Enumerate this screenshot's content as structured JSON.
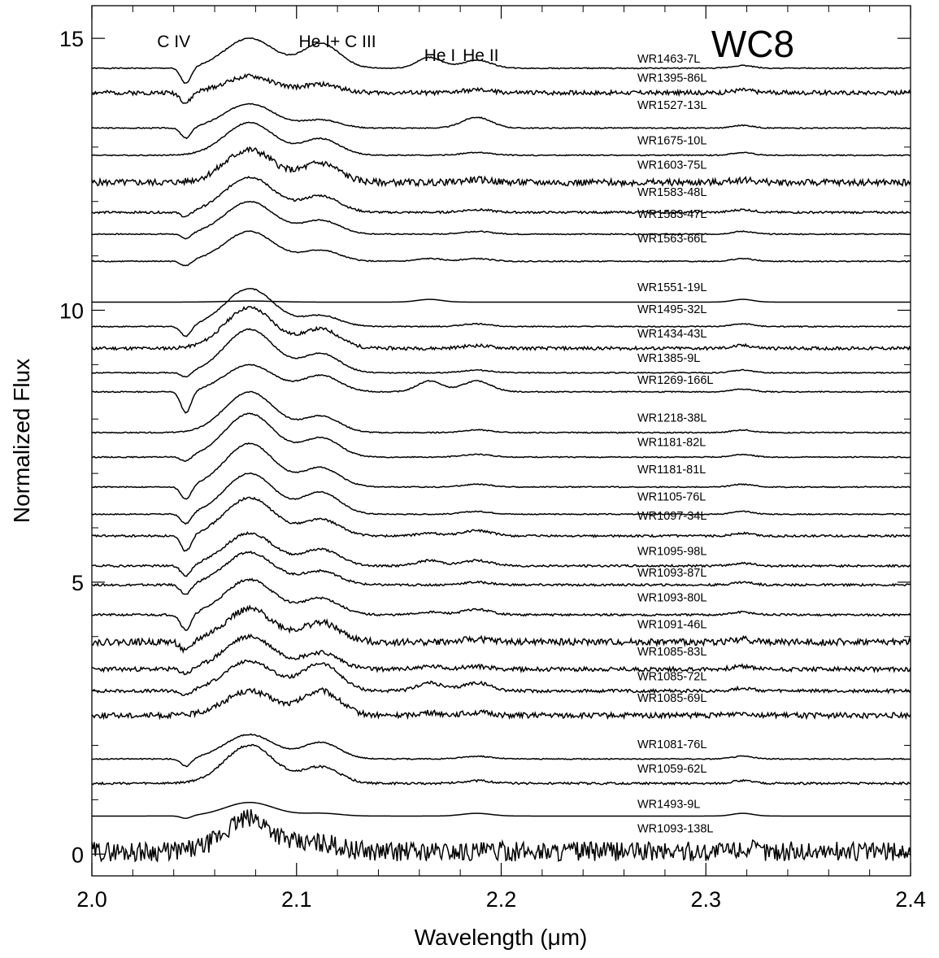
{
  "chart_data": {
    "type": "line",
    "title": "WC8",
    "xlabel": "Wavelength (μm)",
    "ylabel": "Normalized Flux",
    "xlim": [
      2.0,
      2.4
    ],
    "ylim": [
      -0.4,
      15.6
    ],
    "x_ticks": [
      2.0,
      2.1,
      2.2,
      2.3,
      2.4
    ],
    "x_tick_labels": [
      "2.0",
      "2.1",
      "2.2",
      "2.3",
      "2.4"
    ],
    "y_ticks": [
      0,
      5,
      10,
      15
    ],
    "y_tick_labels": [
      "0",
      "5",
      "10",
      "15"
    ],
    "grid": false,
    "legend": "none",
    "line_annotations": [
      {
        "text": "C IV",
        "x": 2.04
      },
      {
        "text": "He I+ C III",
        "x": 2.12
      },
      {
        "text": "He I",
        "x": 2.17
      },
      {
        "text": "He II",
        "x": 2.19
      }
    ],
    "series": [
      {
        "name": "WR1463-7L",
        "offset": 14.45,
        "e1": 0.55,
        "e2": 0.45,
        "e3": 0.2,
        "e4": 0.15,
        "civ": 0.3,
        "noise": 0.01,
        "label_y": 14.55
      },
      {
        "name": "WR1395-86L",
        "offset": 14.0,
        "e1": 0.3,
        "e2": 0.15,
        "e3": 0.0,
        "e4": 0.05,
        "civ": 0.2,
        "noise": 0.04,
        "label_y": 14.2
      },
      {
        "name": "WR1527-13L",
        "offset": 13.35,
        "e1": 0.45,
        "e2": 0.15,
        "e3": 0.0,
        "e4": 0.2,
        "civ": 0.2,
        "noise": 0.01,
        "label_y": 13.7
      },
      {
        "name": "WR1675-10L",
        "offset": 12.85,
        "e1": 0.6,
        "e2": 0.3,
        "e3": 0.0,
        "e4": 0.05,
        "civ": 0.0,
        "noise": 0.01,
        "label_y": 13.05
      },
      {
        "name": "WR1603-75L",
        "offset": 12.35,
        "e1": 0.6,
        "e2": 0.35,
        "e3": 0.0,
        "e4": 0.05,
        "civ": 0.0,
        "noise": 0.06,
        "label_y": 12.6
      },
      {
        "name": "WR1583-48L",
        "offset": 11.8,
        "e1": 0.65,
        "e2": 0.3,
        "e3": 0.0,
        "e4": 0.05,
        "civ": 0.1,
        "noise": 0.02,
        "label_y": 12.1
      },
      {
        "name": "WR1583-47L",
        "offset": 11.4,
        "e1": 0.6,
        "e2": 0.25,
        "e3": 0.0,
        "e4": 0.05,
        "civ": 0.1,
        "noise": 0.01,
        "label_y": 11.7
      },
      {
        "name": "WR1563-66L",
        "offset": 10.9,
        "e1": 0.55,
        "e2": 0.2,
        "e3": 0.05,
        "e4": 0.05,
        "civ": 0.1,
        "noise": 0.01,
        "label_y": 11.25
      },
      {
        "name": "WR1551-19L",
        "offset": 10.15,
        "e1": 0.02,
        "e2": 0.0,
        "e3": 0.05,
        "e4": 0.0,
        "civ": 0.0,
        "noise": 0.0,
        "label_y": 10.35
      },
      {
        "name": "WR1495-32L",
        "offset": 9.7,
        "e1": 0.7,
        "e2": 0.2,
        "e3": 0.0,
        "e4": 0.05,
        "civ": 0.2,
        "noise": 0.01,
        "label_y": 9.95
      },
      {
        "name": "WR1434-43L",
        "offset": 9.3,
        "e1": 0.75,
        "e2": 0.35,
        "e3": 0.0,
        "e4": 0.05,
        "civ": 0.0,
        "noise": 0.03,
        "label_y": 9.5
      },
      {
        "name": "WR1385-9L",
        "offset": 8.85,
        "e1": 0.8,
        "e2": 0.35,
        "e3": 0.0,
        "e4": 0.05,
        "civ": 0.1,
        "noise": 0.01,
        "label_y": 9.05
      },
      {
        "name": "WR1269-166L",
        "offset": 8.5,
        "e1": 0.5,
        "e2": 0.3,
        "e3": 0.2,
        "e4": 0.2,
        "civ": 0.4,
        "noise": 0.01,
        "label_y": 8.65
      },
      {
        "name": "WR1218-38L",
        "offset": 7.75,
        "e1": 0.75,
        "e2": 0.3,
        "e3": 0.0,
        "e4": 0.05,
        "civ": 0.0,
        "noise": 0.01,
        "label_y": 7.95
      },
      {
        "name": "WR1181-82L",
        "offset": 7.3,
        "e1": 0.8,
        "e2": 0.35,
        "e3": 0.0,
        "e4": 0.05,
        "civ": 0.1,
        "noise": 0.01,
        "label_y": 7.5
      },
      {
        "name": "WR1181-81L",
        "offset": 6.75,
        "e1": 0.8,
        "e2": 0.35,
        "e3": 0.0,
        "e4": 0.05,
        "civ": 0.25,
        "noise": 0.01,
        "label_y": 7.0
      },
      {
        "name": "WR1105-76L",
        "offset": 6.25,
        "e1": 0.75,
        "e2": 0.4,
        "e3": 0.0,
        "e4": 0.05,
        "civ": 0.2,
        "noise": 0.01,
        "label_y": 6.5
      },
      {
        "name": "WR1097-34L",
        "offset": 5.85,
        "e1": 0.7,
        "e2": 0.3,
        "e3": 0.05,
        "e4": 0.1,
        "civ": 0.3,
        "noise": 0.02,
        "label_y": 6.15
      },
      {
        "name": "WR1095-98L",
        "offset": 5.3,
        "e1": 0.6,
        "e2": 0.3,
        "e3": 0.1,
        "e4": 0.1,
        "civ": 0.2,
        "noise": 0.02,
        "label_y": 5.5
      },
      {
        "name": "WR1093-87L",
        "offset": 4.95,
        "e1": 0.6,
        "e2": 0.25,
        "e3": 0.0,
        "e4": 0.05,
        "civ": 0.2,
        "noise": 0.02,
        "label_y": 5.1
      },
      {
        "name": "WR1093-80L",
        "offset": 4.4,
        "e1": 0.65,
        "e2": 0.3,
        "e3": 0.05,
        "e4": 0.1,
        "civ": 0.3,
        "noise": 0.02,
        "label_y": 4.65
      },
      {
        "name": "WR1091-46L",
        "offset": 3.9,
        "e1": 0.6,
        "e2": 0.35,
        "e3": 0.0,
        "e4": 0.05,
        "civ": 0.2,
        "noise": 0.06,
        "label_y": 4.15
      },
      {
        "name": "WR1085-83L",
        "offset": 3.4,
        "e1": 0.6,
        "e2": 0.3,
        "e3": 0.05,
        "e4": 0.05,
        "civ": 0.1,
        "noise": 0.04,
        "label_y": 3.65
      },
      {
        "name": "WR1085-72L",
        "offset": 3.0,
        "e1": 0.55,
        "e2": 0.5,
        "e3": 0.15,
        "e4": 0.15,
        "civ": 0.1,
        "noise": 0.03,
        "label_y": 3.2
      },
      {
        "name": "WR1085-69L",
        "offset": 2.55,
        "e1": 0.45,
        "e2": 0.45,
        "e3": 0.05,
        "e4": 0.05,
        "civ": 0.0,
        "noise": 0.05,
        "label_y": 2.8
      },
      {
        "name": "WR1081-76L",
        "offset": 1.75,
        "e1": 0.45,
        "e2": 0.3,
        "e3": 0.0,
        "e4": 0.05,
        "civ": 0.15,
        "noise": 0.01,
        "label_y": 1.95
      },
      {
        "name": "WR1059-62L",
        "offset": 1.3,
        "e1": 0.7,
        "e2": 0.3,
        "e3": 0.0,
        "e4": 0.05,
        "civ": 0.0,
        "noise": 0.02,
        "label_y": 1.5
      },
      {
        "name": "WR1493-9L",
        "offset": 0.7,
        "e1": 0.25,
        "e2": 0.05,
        "e3": 0.0,
        "e4": 0.05,
        "civ": 0.05,
        "noise": 0.0,
        "label_y": 0.85
      },
      {
        "name": "WR1093-138L",
        "offset": 0.05,
        "e1": 0.6,
        "e2": 0.15,
        "e3": 0.0,
        "e4": 0.0,
        "civ": 0.0,
        "noise": 0.18,
        "label_y": 0.4
      }
    ]
  }
}
